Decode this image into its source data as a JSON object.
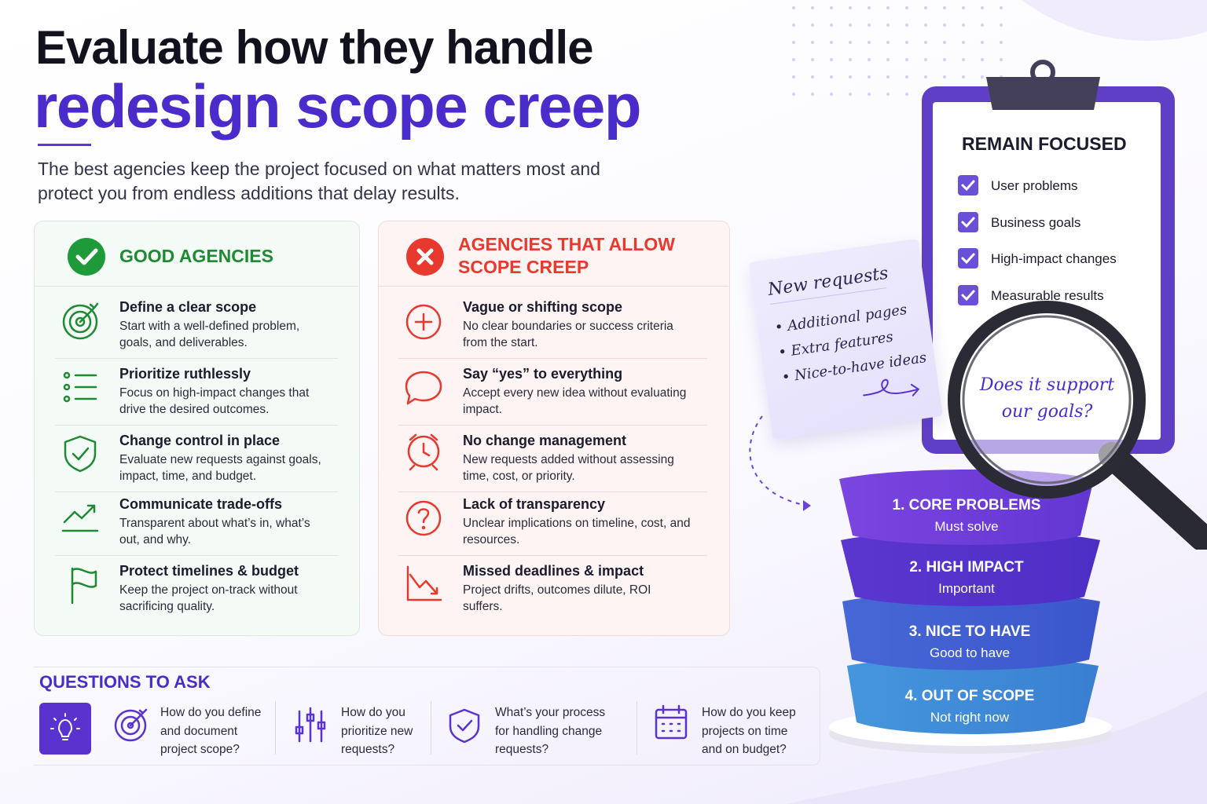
{
  "header": {
    "title_line1": "Evaluate how they handle",
    "title_line2": "redesign scope creep",
    "subtitle": "The best agencies keep the project focused on what matters most and protect you from endless additions that delay results."
  },
  "good": {
    "title": "GOOD AGENCIES",
    "items": [
      {
        "title": "Define a clear scope",
        "desc": "Start with a well-defined problem, goals, and deliverables."
      },
      {
        "title": "Prioritize ruthlessly",
        "desc": "Focus on high-impact changes that drive the desired outcomes."
      },
      {
        "title": "Change control in place",
        "desc": "Evaluate new requests against goals, impact, time, and budget."
      },
      {
        "title": "Communicate trade-offs",
        "desc": "Transparent about what’s in, what’s out, and why."
      },
      {
        "title": "Protect timelines & budget",
        "desc": "Keep the project on-track without sacrificing quality."
      }
    ]
  },
  "bad": {
    "title": "AGENCIES THAT ALLOW SCOPE CREEP",
    "items": [
      {
        "title": "Vague or shifting scope",
        "desc": "No clear boundaries or success criteria from the start."
      },
      {
        "title": "Say “yes” to everything",
        "desc": "Accept every new idea without evaluating impact."
      },
      {
        "title": "No change management",
        "desc": "New requests added without assessing time, cost, or priority."
      },
      {
        "title": "Lack of transparency",
        "desc": "Unclear implications on timeline, cost, and resources."
      },
      {
        "title": "Missed deadlines & impact",
        "desc": "Project drifts, outcomes dilute, ROI suffers."
      }
    ]
  },
  "questions": {
    "title": "QUESTIONS TO ASK",
    "items": [
      "How do you define and document project scope?",
      "How do you prioritize new requests?",
      "What’s your process for handling change requests?",
      "How do you keep projects on time and on budget?"
    ]
  },
  "clipboard": {
    "title": "REMAIN FOCUSED",
    "items": [
      "User problems",
      "Business goals",
      "High-impact changes",
      "Measurable results"
    ]
  },
  "note": {
    "title": "New requests",
    "items": [
      "Additional pages",
      "Extra features",
      "Nice-to-have ideas"
    ]
  },
  "magnifier": {
    "text": "Does it support our goals?"
  },
  "funnel": {
    "levels": [
      {
        "title": "1. CORE PROBLEMS",
        "subtitle": "Must solve"
      },
      {
        "title": "2. HIGH IMPACT",
        "subtitle": "Important"
      },
      {
        "title": "3. NICE TO HAVE",
        "subtitle": "Good to have"
      },
      {
        "title": "4. OUT OF SCOPE",
        "subtitle": "Not right now"
      }
    ]
  }
}
